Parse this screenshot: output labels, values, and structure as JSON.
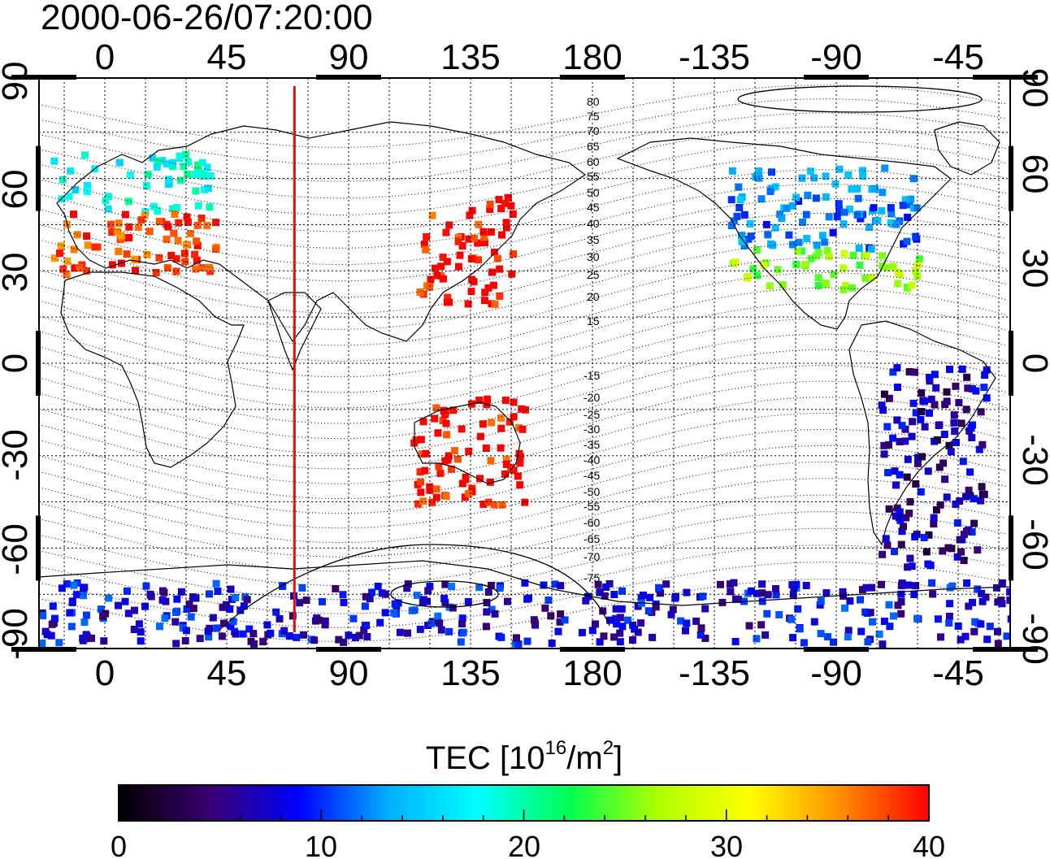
{
  "title": "2000-06-26/07:20:00",
  "map": {
    "lon_ticks_top": [
      "0",
      "45",
      "90",
      "135",
      "180",
      "-135",
      "-90",
      "-45"
    ],
    "lon_ticks_bottom": [
      "0",
      "45",
      "90",
      "135",
      "180",
      "-135",
      "-90",
      "-45"
    ],
    "lat_ticks_left": [
      "90",
      "60",
      "30",
      "0",
      "-30",
      "-60",
      "-90"
    ],
    "lat_ticks_right": [
      "90",
      "60",
      "30",
      "0",
      "-30",
      "-60",
      "-90"
    ],
    "grid": true,
    "marker_longitude": 70,
    "marker_color": "#e01010",
    "contour_labels": [
      "80",
      "75",
      "70",
      "65",
      "60",
      "55",
      "50",
      "45",
      "40",
      "35",
      "30",
      "25",
      "20",
      "15",
      "-15",
      "-20",
      "-25",
      "-30",
      "-35",
      "-40",
      "-45",
      "-50",
      "-55",
      "-60",
      "-65",
      "-70",
      "-75"
    ]
  },
  "colorbar": {
    "title_prefix": "TEC  [10",
    "title_sup1": "16",
    "title_mid": "/m",
    "title_sup2": "2",
    "title_suffix": "]",
    "min": 0,
    "max": 40,
    "tick_labels": [
      "0",
      "10",
      "20",
      "30",
      "40"
    ],
    "colors": [
      "#000000",
      "#3a0070",
      "#0000ff",
      "#00b0ff",
      "#00ffff",
      "#00ff50",
      "#b0ff00",
      "#ffff00",
      "#ff9000",
      "#ff0000"
    ]
  },
  "tec_regions": [
    {
      "name": "europe",
      "lon_range": [
        -20,
        40
      ],
      "lat_range": [
        30,
        70
      ],
      "tec": 26
    },
    {
      "name": "east-asia",
      "lon_range": [
        115,
        150
      ],
      "lat_range": [
        20,
        55
      ],
      "tec": 40
    },
    {
      "name": "north-america",
      "lon_range": [
        -130,
        -60
      ],
      "lat_range": [
        25,
        65
      ],
      "tec": 18
    },
    {
      "name": "south-america",
      "lon_range": [
        -75,
        -35
      ],
      "lat_range": [
        -65,
        0
      ],
      "tec": 6
    },
    {
      "name": "australia",
      "lon_range": [
        112,
        155
      ],
      "lat_range": [
        -45,
        -10
      ],
      "tec": 40
    },
    {
      "name": "antarctica",
      "lon_range": [
        -180,
        180
      ],
      "lat_range": [
        -90,
        -70
      ],
      "tec": 8
    }
  ]
}
